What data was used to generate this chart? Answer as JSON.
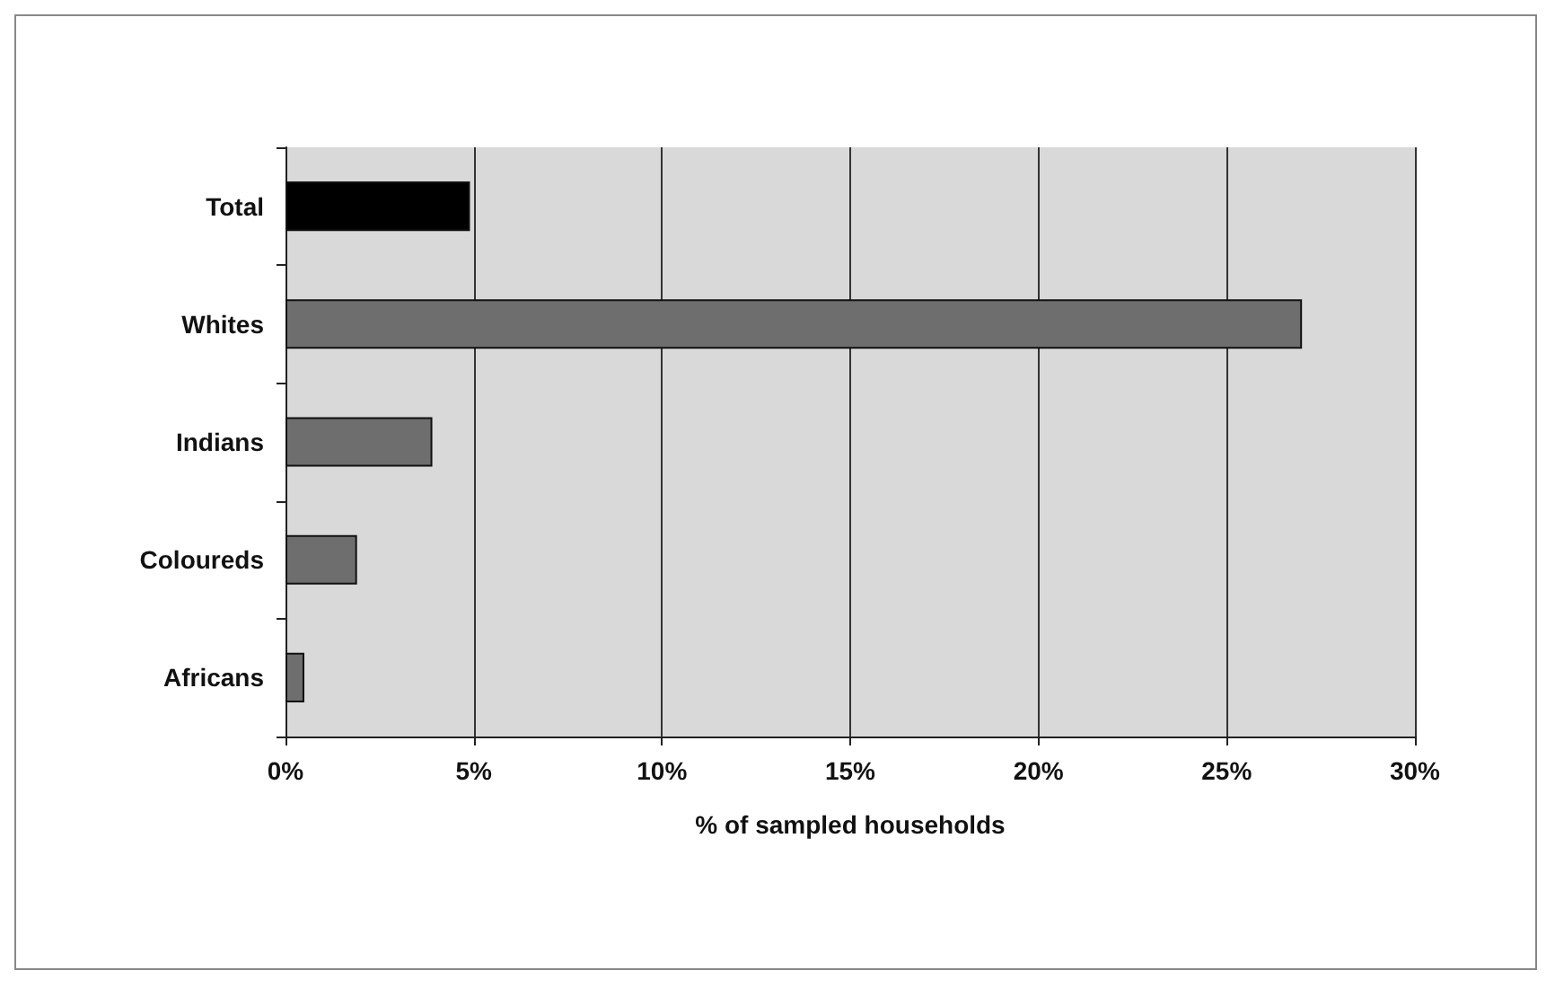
{
  "chart_data": {
    "type": "bar",
    "orientation": "horizontal",
    "xlabel": "% of sampled households",
    "categories": [
      "Total",
      "Whites",
      "Indians",
      "Coloureds",
      "Africans"
    ],
    "values": [
      4.9,
      27,
      3.9,
      1.9,
      0.5
    ],
    "colors": [
      "#000000",
      "#6e6e6e",
      "#6e6e6e",
      "#6e6e6e",
      "#6e6e6e"
    ],
    "xlim": [
      0,
      30
    ],
    "xticks": [
      {
        "value": 0,
        "label": "0%"
      },
      {
        "value": 5,
        "label": "5%"
      },
      {
        "value": 10,
        "label": "10%"
      },
      {
        "value": 15,
        "label": "15%"
      },
      {
        "value": 20,
        "label": "20%"
      },
      {
        "value": 25,
        "label": "25%"
      },
      {
        "value": 30,
        "label": "30%"
      }
    ],
    "grid": "x"
  }
}
